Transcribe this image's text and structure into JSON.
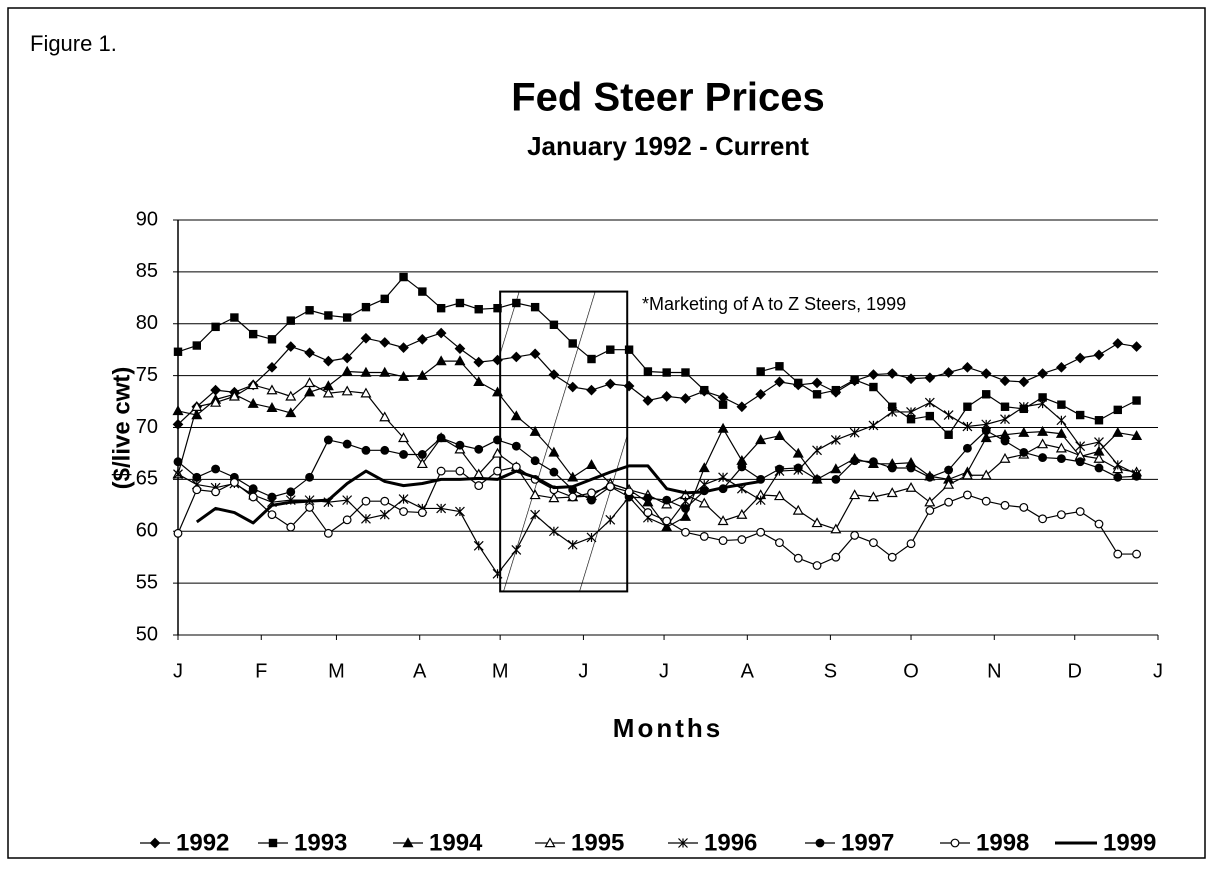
{
  "chart_data": {
    "type": "line",
    "figure_label": "Figure 1.",
    "title": "Fed Steer Prices",
    "subtitle": "January 1992 - Current",
    "y_label": "($/live cwt)",
    "x_label": "Months",
    "annotation": "*Marketing of A to Z Steers, 1999",
    "highlight": {
      "x": [
        17.14,
        23.9
      ],
      "y": [
        54.2,
        83.1
      ]
    },
    "xlim": [
      0,
      52.14
    ],
    "ylim": [
      50,
      90
    ],
    "yticks": [
      50,
      55,
      60,
      65,
      70,
      75,
      80,
      85,
      90
    ],
    "xticks": [
      {
        "value": 0,
        "label": "J"
      },
      {
        "value": 4.43,
        "label": "F"
      },
      {
        "value": 8.43,
        "label": "M"
      },
      {
        "value": 12.86,
        "label": "A"
      },
      {
        "value": 17.14,
        "label": "M"
      },
      {
        "value": 21.57,
        "label": "J"
      },
      {
        "value": 25.86,
        "label": "J"
      },
      {
        "value": 30.29,
        "label": "A"
      },
      {
        "value": 34.71,
        "label": "S"
      },
      {
        "value": 39,
        "label": "O"
      },
      {
        "value": 43.43,
        "label": "N"
      },
      {
        "value": 47.71,
        "label": "D"
      },
      {
        "value": 52.14,
        "label": "J"
      }
    ],
    "grid": true,
    "legend": "bottom",
    "x": [
      0,
      1,
      2,
      3,
      4,
      5,
      6,
      7,
      8,
      9,
      10,
      11,
      12,
      13,
      14,
      15,
      16,
      17,
      18,
      19,
      20,
      21,
      22,
      23,
      24,
      25,
      26,
      27,
      28,
      29,
      30,
      31,
      32,
      33,
      34,
      35,
      36,
      37,
      38,
      39,
      40,
      41,
      42,
      43,
      44,
      45,
      46,
      47,
      48,
      49,
      50,
      51
    ],
    "series": [
      {
        "name": "1992",
        "color": "#000000",
        "marker": "diamond",
        "values": [
          70.3,
          72,
          73.6,
          73.4,
          74.1,
          75.8,
          77.8,
          77.2,
          76.4,
          76.7,
          78.6,
          78.2,
          77.7,
          78.5,
          79.1,
          77.6,
          76.3,
          76.5,
          76.8,
          77.1,
          75.1,
          73.9,
          73.6,
          74.2,
          74,
          72.6,
          73,
          72.8,
          73.5,
          72.9,
          72,
          73.2,
          74.4,
          74.1,
          74.3,
          73.4,
          74.5,
          75.1,
          75.2,
          74.7,
          74.8,
          75.3,
          75.8,
          75.2,
          74.5,
          74.4,
          75.2,
          75.8,
          76.7,
          77,
          78.1,
          77.8
        ]
      },
      {
        "name": "1993",
        "color": "#000000",
        "marker": "square",
        "values": [
          77.3,
          77.9,
          79.7,
          80.6,
          79.0,
          78.5,
          80.3,
          81.3,
          80.8,
          80.6,
          81.6,
          82.4,
          84.5,
          83.1,
          81.5,
          82.0,
          81.4,
          81.5,
          82.0,
          81.6,
          79.9,
          78.1,
          76.6,
          77.5,
          77.5,
          75.4,
          75.3,
          75.3,
          73.6,
          72.2,
          null,
          75.4,
          75.9,
          74.3,
          73.2,
          73.6,
          74.6,
          73.9,
          72.0,
          70.8,
          71.1,
          69.3,
          72.0,
          73.2,
          72.0,
          71.8,
          72.9,
          72.2,
          71.2,
          70.7,
          71.7,
          72.6
        ]
      },
      {
        "name": "1994",
        "color": "#000000",
        "marker": "triangle",
        "values": [
          71.6,
          71.2,
          72.7,
          73.2,
          72.3,
          71.9,
          71.4,
          73.4,
          74.0,
          75.4,
          75.3,
          75.3,
          74.9,
          75.0,
          76.4,
          76.4,
          74.4,
          73.4,
          71.1,
          69.6,
          67.6,
          65.2,
          66.4,
          64.6,
          64.0,
          62.8,
          60.4,
          61.4,
          66.1,
          69.9,
          66.8,
          68.8,
          69.2,
          67.5,
          65.0,
          66.0,
          67.0,
          66.5,
          66.5,
          66.6,
          65.3,
          65.0,
          65.7,
          69.0,
          69.3,
          69.5,
          69.6,
          69.4,
          67.2,
          67.7,
          69.5,
          69.2
        ]
      },
      {
        "name": "1995",
        "color": "#000000",
        "marker": "open-triangle",
        "values": [
          65.5,
          72.0,
          72.4,
          73.0,
          74.1,
          73.6,
          73.0,
          74.3,
          73.3,
          73.5,
          73.3,
          71.0,
          69.0,
          66.5,
          69.0,
          67.9,
          65.5,
          67.5,
          66.2,
          63.5,
          63.2,
          63.3,
          63.4,
          64.6,
          64.0,
          63.5,
          62.6,
          63.5,
          62.7,
          61.0,
          61.6,
          63.5,
          63.4,
          62.0,
          60.8,
          60.2,
          63.5,
          63.3,
          63.7,
          64.2,
          62.8,
          64.5,
          65.4,
          65.4,
          67.0,
          67.4,
          68.4,
          68.0,
          67.3,
          67.0,
          66.0,
          65.7
        ]
      },
      {
        "name": "1996",
        "color": "#000000",
        "marker": "star",
        "values": [
          65.5,
          64.5,
          64.2,
          64.6,
          63.5,
          62.8,
          63.0,
          63.0,
          62.8,
          63.0,
          61.2,
          61.6,
          63.1,
          62.2,
          62.2,
          61.9,
          58.6,
          55.9,
          58.2,
          61.6,
          60.0,
          58.7,
          59.4,
          61.1,
          63.3,
          61.3,
          60.5,
          62.9,
          64.5,
          65.2,
          64.1,
          63.0,
          65.8,
          65.9,
          67.8,
          68.8,
          69.5,
          70.2,
          71.5,
          71.5,
          72.4,
          71.2,
          70.1,
          70.3,
          70.8,
          72.0,
          72.3,
          70.7,
          68.2,
          68.6,
          66.4,
          65.5
        ]
      },
      {
        "name": "1997",
        "color": "#000000",
        "marker": "dot",
        "values": [
          66.7,
          65.2,
          66.0,
          65.2,
          64.1,
          63.3,
          63.8,
          65.2,
          68.8,
          68.4,
          67.8,
          67.8,
          67.4,
          67.4,
          69.0,
          68.3,
          67.9,
          68.8,
          68.2,
          66.8,
          65.7,
          64.0,
          63.0,
          64.3,
          63.3,
          63.2,
          63.0,
          62.2,
          63.9,
          64.1,
          66.2,
          65.0,
          66.0,
          66.1,
          65.0,
          65.0,
          66.8,
          66.7,
          66.1,
          66.1,
          65.2,
          65.9,
          68.0,
          69.7,
          68.7,
          67.6,
          67.1,
          67.0,
          66.7,
          66.1,
          65.2,
          65.3
        ]
      },
      {
        "name": "1998",
        "color": "#000000",
        "marker": "circle",
        "values": [
          59.8,
          64.0,
          63.8,
          64.7,
          63.3,
          61.6,
          60.4,
          62.3,
          59.8,
          61.1,
          62.9,
          62.9,
          61.9,
          61.8,
          65.8,
          65.8,
          64.4,
          65.8,
          66.2,
          65.0,
          64.0,
          63.3,
          63.7,
          64.3,
          63.8,
          61.8,
          61.0,
          59.9,
          59.5,
          59.1,
          59.2,
          59.9,
          58.9,
          57.4,
          56.7,
          57.5,
          59.6,
          58.9,
          57.5,
          58.8,
          62.0,
          62.8,
          63.5,
          62.9,
          62.5,
          62.3,
          61.2,
          61.6,
          61.9,
          60.7,
          57.8,
          57.8
        ]
      },
      {
        "name": "1999",
        "color": "#000000",
        "marker": "none",
        "width": 3,
        "values": [
          null,
          60.9,
          62.2,
          61.8,
          60.8,
          62.5,
          62.8,
          62.9,
          63.0,
          64.6,
          65.8,
          64.8,
          64.4,
          64.6,
          65.0,
          65.0,
          65.1,
          65.0,
          65.8,
          65.2,
          64.2,
          64.3,
          65.0,
          65.7,
          66.3,
          66.3,
          64.1,
          63.7,
          63.8,
          64.2,
          64.5,
          64.8,
          null,
          null,
          null,
          null,
          null,
          null,
          null,
          null,
          null,
          null,
          null,
          null,
          null,
          null,
          null,
          null,
          null,
          null,
          null,
          null
        ]
      }
    ]
  }
}
